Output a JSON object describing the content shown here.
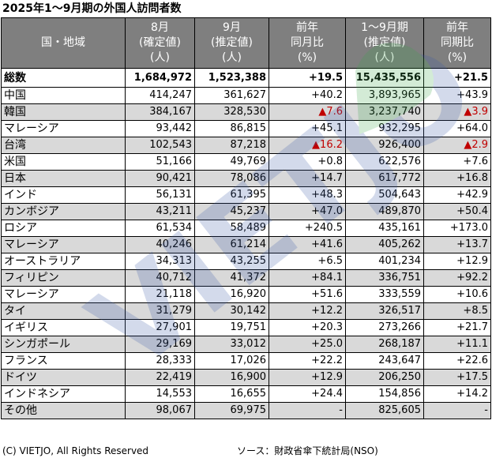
{
  "title": "2025年1～9月期の外国人訪問者数",
  "headers": [
    [
      "国・地域"
    ],
    [
      "8月",
      "(確定値)",
      "(人)"
    ],
    [
      "9月",
      "(推定値)",
      "(人)"
    ],
    [
      "前年",
      "同月比",
      "(%)"
    ],
    [
      "1～9月期",
      "(推定値)",
      "(人)"
    ],
    [
      "前年",
      "同期比",
      "(%)"
    ]
  ],
  "total": {
    "name": "総数",
    "aug": "1,684,972",
    "sep": "1,523,388",
    "yoy_month": "+19.5",
    "ytd": "15,435,556",
    "yoy_ytd": "+21.5"
  },
  "rows": [
    {
      "name": "中国",
      "aug": "414,247",
      "sep": "361,627",
      "yoy_month": "+40.2",
      "ytd": "3,893,965",
      "yoy_ytd": "+43.9"
    },
    {
      "name": "韓国",
      "aug": "384,167",
      "sep": "328,530",
      "yoy_month": "▲7.6",
      "ytd": "3,237,740",
      "yoy_ytd": "▲3.9"
    },
    {
      "name": "マレーシア",
      "aug": "93,442",
      "sep": "86,815",
      "yoy_month": "+45.1",
      "ytd": "932,295",
      "yoy_ytd": "+64.0"
    },
    {
      "name": "台湾",
      "aug": "102,543",
      "sep": "87,218",
      "yoy_month": "▲16.2",
      "ytd": "926,400",
      "yoy_ytd": "▲2.9"
    },
    {
      "name": "米国",
      "aug": "51,166",
      "sep": "49,769",
      "yoy_month": "+0.8",
      "ytd": "622,576",
      "yoy_ytd": "+7.6"
    },
    {
      "name": "日本",
      "aug": "90,421",
      "sep": "78,086",
      "yoy_month": "+14.7",
      "ytd": "617,772",
      "yoy_ytd": "+16.8"
    },
    {
      "name": "インド",
      "aug": "56,131",
      "sep": "61,395",
      "yoy_month": "+48.3",
      "ytd": "504,643",
      "yoy_ytd": "+42.9"
    },
    {
      "name": "カンボジア",
      "aug": "43,211",
      "sep": "45,237",
      "yoy_month": "+47.0",
      "ytd": "489,870",
      "yoy_ytd": "+50.4"
    },
    {
      "name": "ロシア",
      "aug": "61,534",
      "sep": "58,489",
      "yoy_month": "+240.5",
      "ytd": "435,161",
      "yoy_ytd": "+173.0"
    },
    {
      "name": "マレーシア",
      "aug": "40,246",
      "sep": "61,214",
      "yoy_month": "+41.6",
      "ytd": "405,262",
      "yoy_ytd": "+13.7"
    },
    {
      "name": "オーストラリア",
      "aug": "34,313",
      "sep": "43,255",
      "yoy_month": "+6.5",
      "ytd": "401,234",
      "yoy_ytd": "+12.9"
    },
    {
      "name": "フィリピン",
      "aug": "40,712",
      "sep": "41,372",
      "yoy_month": "+84.1",
      "ytd": "336,751",
      "yoy_ytd": "+92.2"
    },
    {
      "name": "マレーシア",
      "aug": "21,118",
      "sep": "16,920",
      "yoy_month": "+51.6",
      "ytd": "333,559",
      "yoy_ytd": "+10.6"
    },
    {
      "name": "タイ",
      "aug": "31,279",
      "sep": "30,142",
      "yoy_month": "+12.2",
      "ytd": "326,517",
      "yoy_ytd": "+8.5"
    },
    {
      "name": "イギリス",
      "aug": "27,901",
      "sep": "19,751",
      "yoy_month": "+20.3",
      "ytd": "273,266",
      "yoy_ytd": "+21.7"
    },
    {
      "name": "シンガポール",
      "aug": "29,169",
      "sep": "33,012",
      "yoy_month": "+25.0",
      "ytd": "268,187",
      "yoy_ytd": "+11.1"
    },
    {
      "name": "フランス",
      "aug": "28,333",
      "sep": "17,026",
      "yoy_month": "+22.2",
      "ytd": "243,647",
      "yoy_ytd": "+22.6"
    },
    {
      "name": "ドイツ",
      "aug": "22,419",
      "sep": "16,900",
      "yoy_month": "+12.9",
      "ytd": "206,250",
      "yoy_ytd": "+17.5"
    },
    {
      "name": "インドネシア",
      "aug": "14,553",
      "sep": "16,655",
      "yoy_month": "+24.4",
      "ytd": "154,856",
      "yoy_ytd": "+14.2"
    },
    {
      "name": "その他",
      "aug": "98,067",
      "sep": "69,975",
      "yoy_month": "-",
      "ytd": "825,605",
      "yoy_ytd": "-"
    }
  ],
  "footer": {
    "copyright": "(C) VIETJO, All Rights Reserved",
    "source": "ソース：財政省傘下統計局(NSO)"
  },
  "watermark": {
    "text": "VIETJO",
    "colors": [
      "#3a5ba9",
      "#3aa64a"
    ]
  },
  "colors": {
    "header_bg": "#7f7f7f",
    "row_gray": "#d9d9d9",
    "negative": "#c00000"
  }
}
